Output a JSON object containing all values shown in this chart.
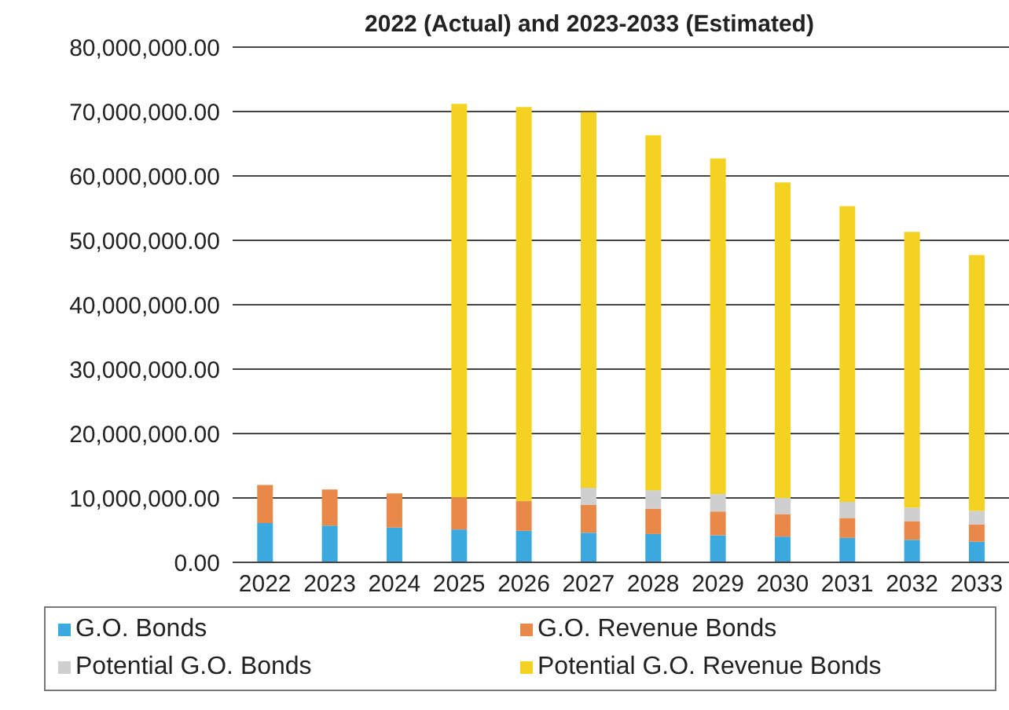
{
  "chart_data": {
    "type": "bar",
    "title": "2022 (Actual) and 2023-2033 (Estimated)",
    "stacked": true,
    "categories": [
      "2022",
      "2023",
      "2024",
      "2025",
      "2026",
      "2027",
      "2028",
      "2029",
      "2030",
      "2031",
      "2032",
      "2033"
    ],
    "series": [
      {
        "name": "G.O. Bonds",
        "color": "#3ba9e0",
        "values": [
          6100000,
          5700000,
          5400000,
          5100000,
          4900000,
          4600000,
          4400000,
          4200000,
          4000000,
          3800000,
          3500000,
          3200000
        ]
      },
      {
        "name": "G.O. Revenue Bonds",
        "color": "#e8894a",
        "values": [
          5900000,
          5600000,
          5300000,
          5000000,
          4600000,
          4300000,
          3900000,
          3700000,
          3500000,
          3100000,
          2900000,
          2700000
        ]
      },
      {
        "name": "Potential G.O. Bonds",
        "color": "#cfcfcf",
        "values": [
          0,
          0,
          0,
          0,
          0,
          2700000,
          2900000,
          2700000,
          2500000,
          2500000,
          2100000,
          2100000
        ]
      },
      {
        "name": "Potential G.O. Revenue Bonds",
        "color": "#f4d221",
        "values": [
          0,
          0,
          0,
          61100000,
          61200000,
          58300000,
          55100000,
          52100000,
          49000000,
          45900000,
          42800000,
          39700000
        ]
      }
    ],
    "ylim": [
      0,
      80000000
    ],
    "yticks": [
      {
        "value": 0,
        "label": "0.00"
      },
      {
        "value": 10000000,
        "label": "10,000,000.00"
      },
      {
        "value": 20000000,
        "label": "20,000,000.00"
      },
      {
        "value": 30000000,
        "label": "30,000,000.00"
      },
      {
        "value": 40000000,
        "label": "40,000,000.00"
      },
      {
        "value": 50000000,
        "label": "50,000,000.00"
      },
      {
        "value": 60000000,
        "label": "60,000,000.00"
      },
      {
        "value": 70000000,
        "label": "70,000,000.00"
      },
      {
        "value": 80000000,
        "label": "80,000,000.00"
      }
    ],
    "grid": "y",
    "legend": "bottom"
  }
}
